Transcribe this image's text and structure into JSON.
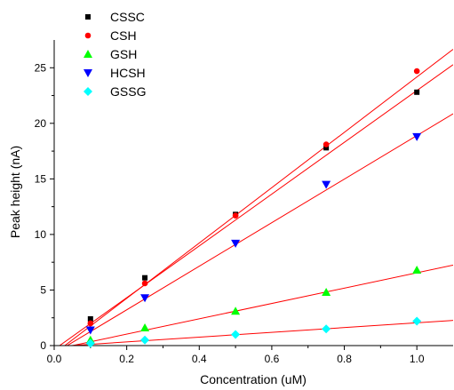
{
  "chart_data": {
    "type": "scatter",
    "xlabel": "Concentration (uM)",
    "ylabel": "Peak height (nA)",
    "xlim": [
      0.0,
      1.1
    ],
    "ylim": [
      0,
      27.5
    ],
    "x_ticks": [
      "0.0",
      "0.2",
      "0.4",
      "0.6",
      "0.8",
      "1.0"
    ],
    "y_ticks": [
      "0",
      "5",
      "10",
      "15",
      "20",
      "25"
    ],
    "x_tick_values": [
      0.0,
      0.2,
      0.4,
      0.6,
      0.8,
      1.0
    ],
    "y_tick_values": [
      0,
      5,
      10,
      15,
      20,
      25
    ],
    "grid": false,
    "legend_position": "top-left",
    "fit_line_color": "#ff0000",
    "series": [
      {
        "name": "CSSC",
        "marker": "square",
        "color": "#000000",
        "x": [
          0.1,
          0.25,
          0.5,
          0.75,
          1.0
        ],
        "y": [
          2.4,
          6.1,
          11.8,
          17.8,
          22.8
        ],
        "fit": {
          "slope": 23.3,
          "intercept": -0.35
        }
      },
      {
        "name": "CSH",
        "marker": "circle",
        "color": "#ff0000",
        "x": [
          0.1,
          0.25,
          0.5,
          0.75,
          1.0
        ],
        "y": [
          2.0,
          5.6,
          11.7,
          18.1,
          24.7
        ],
        "fit": {
          "slope": 24.9,
          "intercept": -0.73
        }
      },
      {
        "name": "GSH",
        "marker": "triangle-up",
        "color": "#00ff00",
        "x": [
          0.1,
          0.25,
          0.5,
          0.75,
          1.0
        ],
        "y": [
          0.5,
          1.6,
          3.1,
          4.8,
          6.8
        ],
        "fit": {
          "slope": 6.9,
          "intercept": -0.35
        }
      },
      {
        "name": "HCSH",
        "marker": "triangle-down",
        "color": "#0000ff",
        "x": [
          0.1,
          0.25,
          0.5,
          0.75,
          1.0
        ],
        "y": [
          1.4,
          4.3,
          9.2,
          14.5,
          18.8
        ],
        "fit": {
          "slope": 19.6,
          "intercept": -0.7
        }
      },
      {
        "name": "GSSG",
        "marker": "diamond",
        "color": "#00ffff",
        "x": [
          0.1,
          0.25,
          0.5,
          0.75,
          1.0
        ],
        "y": [
          0.2,
          0.5,
          1.0,
          1.5,
          2.2
        ],
        "fit": {
          "slope": 2.15,
          "intercept": -0.1
        }
      }
    ]
  }
}
